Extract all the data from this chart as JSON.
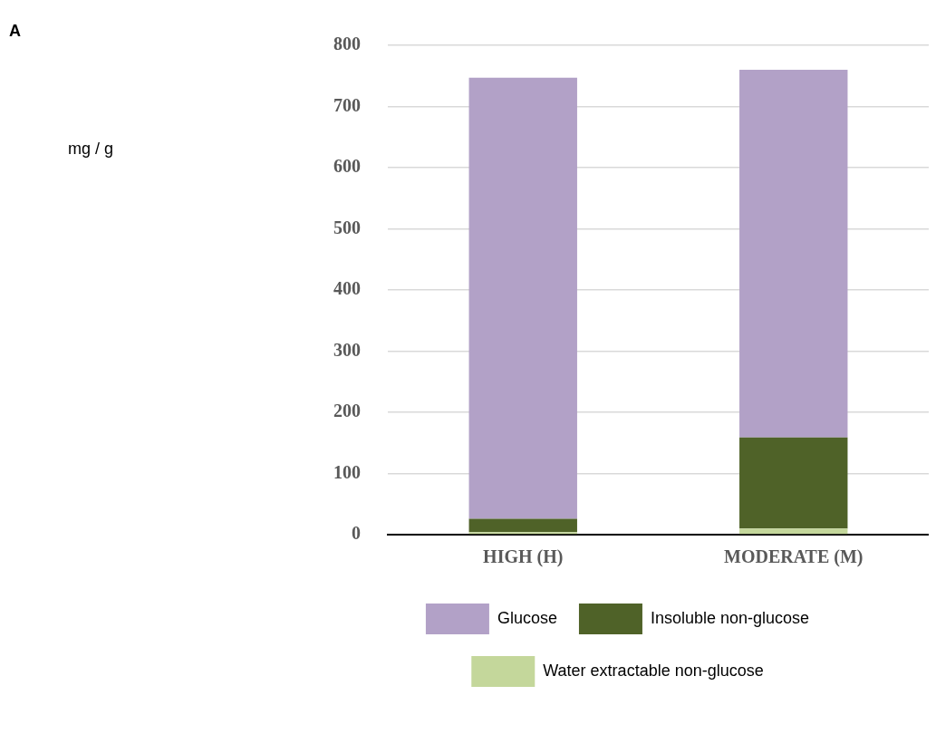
{
  "chart_data": {
    "type": "bar",
    "stacked": true,
    "annotations": [
      "A",
      "mg / g"
    ],
    "categories": [
      "HIGH (H)",
      "MODERATE (M)"
    ],
    "series": [
      {
        "name": "Water extractable non-glucose",
        "color": "#c4d79b",
        "values": [
          4,
          10
        ]
      },
      {
        "name": "Insoluble non-glucose",
        "color": "#4f6228",
        "values": [
          22,
          149
        ]
      },
      {
        "name": "Glucose",
        "color": "#b2a1c7",
        "values": [
          721,
          601
        ]
      }
    ],
    "ylim": [
      0,
      800
    ],
    "yticks": [
      0,
      100,
      200,
      300,
      400,
      500,
      600,
      700,
      800
    ],
    "grid": "y",
    "legend": "bottom"
  }
}
